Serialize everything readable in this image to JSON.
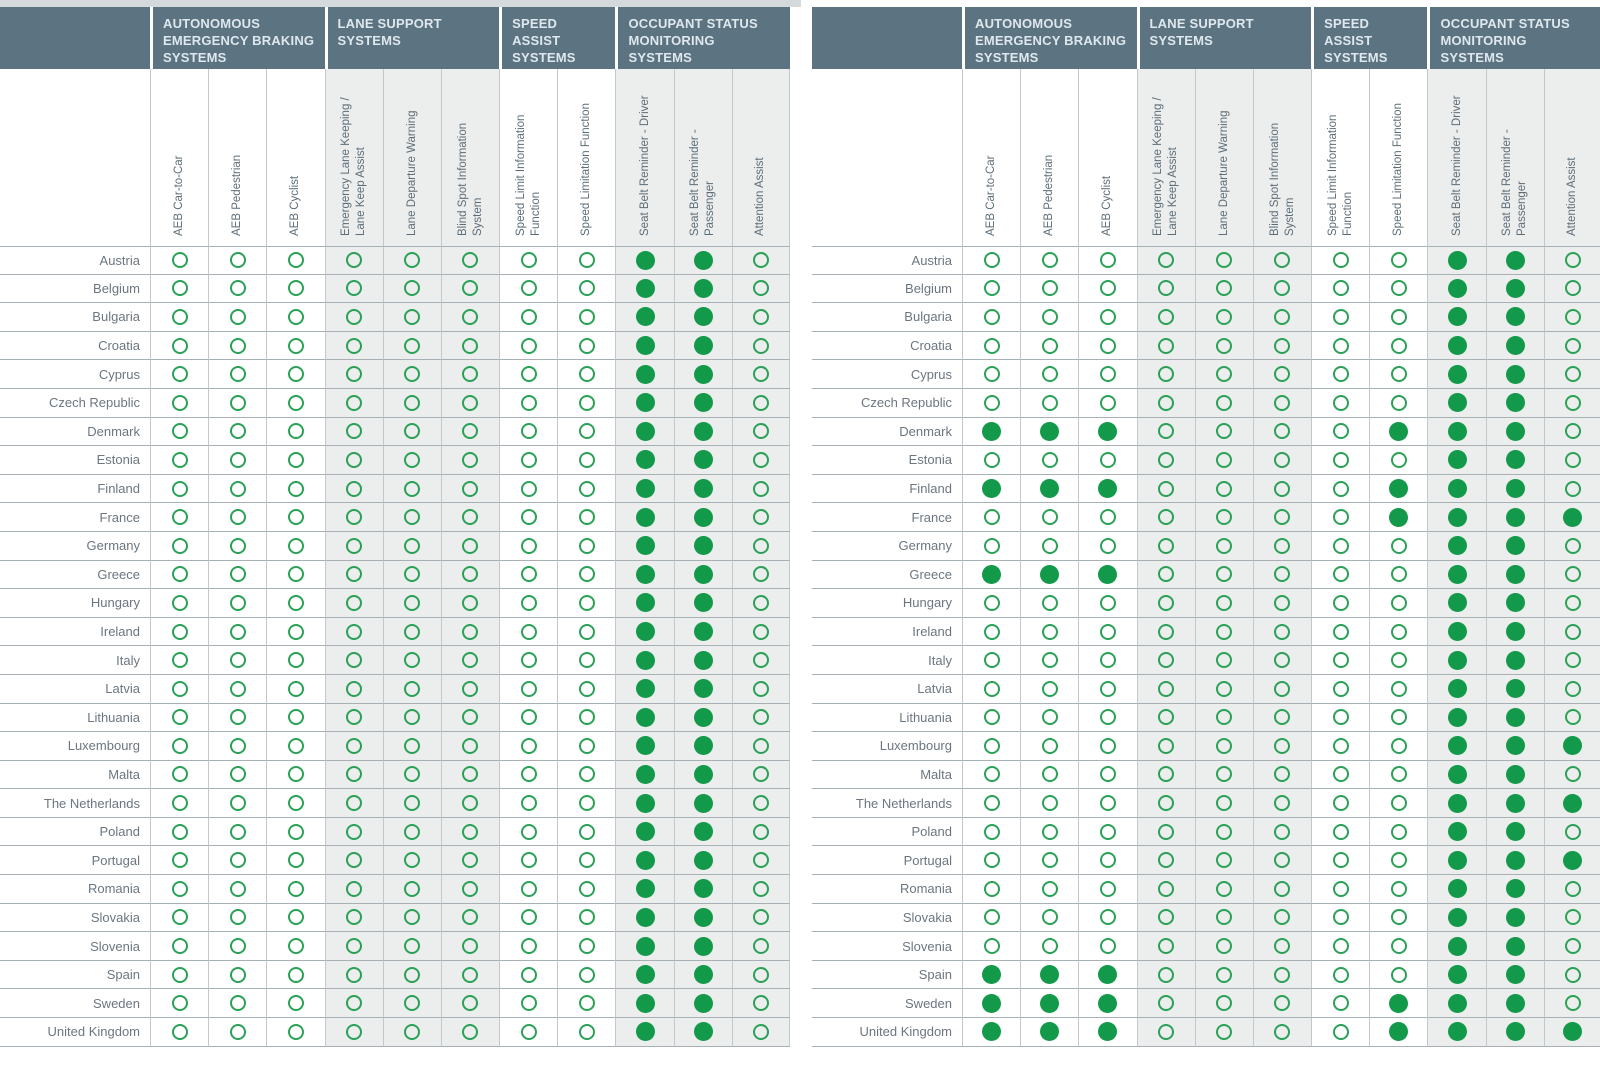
{
  "colors": {
    "header_bg": "#5c7381",
    "header_text": "#dfe8ec",
    "dot_fill": "#12994a",
    "dot_ring": "#2aa156",
    "shade_bg": "#eceded",
    "row_line": "#a6b0b5",
    "col_line": "#c2c9cc",
    "country_text": "#6b7680",
    "label_text": "#5d6d77",
    "edge_strip": "#d4d9db"
  },
  "cell_encoding": "1 = filled green circle, 0 = empty green circle outline",
  "chart_data": [
    {
      "type": "table",
      "column_groups": [
        {
          "label": "AUTONOMOUS EMERGENCY BRAKING SYSTEMS",
          "span": 3
        },
        {
          "label": "LANE SUPPORT SYSTEMS",
          "span": 3
        },
        {
          "label": "SPEED ASSIST SYSTEMS",
          "span": 2
        },
        {
          "label": "OCCUPANT STATUS MONITORING SYSTEMS",
          "span": 3
        }
      ],
      "columns": [
        "AEB Car-to-Car",
        "AEB Pedestrian",
        "AEB Cyclist",
        "Emergency Lane Keeping / Lane Keep Assist",
        "Lane Departure Warning",
        "Blind Spot Information System",
        "Speed Limit Information Function",
        "Speed Limitation Function",
        "Seat Belt Reminder - Driver",
        "Seat Belt Reminder - Passenger",
        "Attention Assist"
      ],
      "rows": [
        "Austria",
        "Belgium",
        "Bulgaria",
        "Croatia",
        "Cyprus",
        "Czech Republic",
        "Denmark",
        "Estonia",
        "Finland",
        "France",
        "Germany",
        "Greece",
        "Hungary",
        "Ireland",
        "Italy",
        "Latvia",
        "Lithuania",
        "Luxembourg",
        "Malta",
        "The Netherlands",
        "Poland",
        "Portugal",
        "Romania",
        "Slovakia",
        "Slovenia",
        "Spain",
        "Sweden",
        "United Kingdom"
      ],
      "values": [
        [
          0,
          0,
          0,
          0,
          0,
          0,
          0,
          0,
          1,
          1,
          0
        ],
        [
          0,
          0,
          0,
          0,
          0,
          0,
          0,
          0,
          1,
          1,
          0
        ],
        [
          0,
          0,
          0,
          0,
          0,
          0,
          0,
          0,
          1,
          1,
          0
        ],
        [
          0,
          0,
          0,
          0,
          0,
          0,
          0,
          0,
          1,
          1,
          0
        ],
        [
          0,
          0,
          0,
          0,
          0,
          0,
          0,
          0,
          1,
          1,
          0
        ],
        [
          0,
          0,
          0,
          0,
          0,
          0,
          0,
          0,
          1,
          1,
          0
        ],
        [
          0,
          0,
          0,
          0,
          0,
          0,
          0,
          0,
          1,
          1,
          0
        ],
        [
          0,
          0,
          0,
          0,
          0,
          0,
          0,
          0,
          1,
          1,
          0
        ],
        [
          0,
          0,
          0,
          0,
          0,
          0,
          0,
          0,
          1,
          1,
          0
        ],
        [
          0,
          0,
          0,
          0,
          0,
          0,
          0,
          0,
          1,
          1,
          0
        ],
        [
          0,
          0,
          0,
          0,
          0,
          0,
          0,
          0,
          1,
          1,
          0
        ],
        [
          0,
          0,
          0,
          0,
          0,
          0,
          0,
          0,
          1,
          1,
          0
        ],
        [
          0,
          0,
          0,
          0,
          0,
          0,
          0,
          0,
          1,
          1,
          0
        ],
        [
          0,
          0,
          0,
          0,
          0,
          0,
          0,
          0,
          1,
          1,
          0
        ],
        [
          0,
          0,
          0,
          0,
          0,
          0,
          0,
          0,
          1,
          1,
          0
        ],
        [
          0,
          0,
          0,
          0,
          0,
          0,
          0,
          0,
          1,
          1,
          0
        ],
        [
          0,
          0,
          0,
          0,
          0,
          0,
          0,
          0,
          1,
          1,
          0
        ],
        [
          0,
          0,
          0,
          0,
          0,
          0,
          0,
          0,
          1,
          1,
          0
        ],
        [
          0,
          0,
          0,
          0,
          0,
          0,
          0,
          0,
          1,
          1,
          0
        ],
        [
          0,
          0,
          0,
          0,
          0,
          0,
          0,
          0,
          1,
          1,
          0
        ],
        [
          0,
          0,
          0,
          0,
          0,
          0,
          0,
          0,
          1,
          1,
          0
        ],
        [
          0,
          0,
          0,
          0,
          0,
          0,
          0,
          0,
          1,
          1,
          0
        ],
        [
          0,
          0,
          0,
          0,
          0,
          0,
          0,
          0,
          1,
          1,
          0
        ],
        [
          0,
          0,
          0,
          0,
          0,
          0,
          0,
          0,
          1,
          1,
          0
        ],
        [
          0,
          0,
          0,
          0,
          0,
          0,
          0,
          0,
          1,
          1,
          0
        ],
        [
          0,
          0,
          0,
          0,
          0,
          0,
          0,
          0,
          1,
          1,
          0
        ],
        [
          0,
          0,
          0,
          0,
          0,
          0,
          0,
          0,
          1,
          1,
          0
        ],
        [
          0,
          0,
          0,
          0,
          0,
          0,
          0,
          0,
          1,
          1,
          0
        ]
      ]
    },
    {
      "type": "table",
      "column_groups": [
        {
          "label": "AUTONOMOUS EMERGENCY BRAKING SYSTEMS",
          "span": 3
        },
        {
          "label": "LANE SUPPORT SYSTEMS",
          "span": 3
        },
        {
          "label": "SPEED ASSIST SYSTEMS",
          "span": 2
        },
        {
          "label": "OCCUPANT STATUS MONITORING SYSTEMS",
          "span": 3
        }
      ],
      "columns": [
        "AEB Car-to-Car",
        "AEB Pedestrian",
        "AEB Cyclist",
        "Emergency Lane Keeping / Lane Keep Assist",
        "Lane Departure Warning",
        "Blind Spot Information System",
        "Speed Limit Information Function",
        "Speed Limitation Function",
        "Seat Belt Reminder - Driver",
        "Seat Belt Reminder - Passenger",
        "Attention Assist"
      ],
      "rows": [
        "Austria",
        "Belgium",
        "Bulgaria",
        "Croatia",
        "Cyprus",
        "Czech Republic",
        "Denmark",
        "Estonia",
        "Finland",
        "France",
        "Germany",
        "Greece",
        "Hungary",
        "Ireland",
        "Italy",
        "Latvia",
        "Lithuania",
        "Luxembourg",
        "Malta",
        "The Netherlands",
        "Poland",
        "Portugal",
        "Romania",
        "Slovakia",
        "Slovenia",
        "Spain",
        "Sweden",
        "United Kingdom"
      ],
      "values": [
        [
          0,
          0,
          0,
          0,
          0,
          0,
          0,
          0,
          1,
          1,
          0
        ],
        [
          0,
          0,
          0,
          0,
          0,
          0,
          0,
          0,
          1,
          1,
          0
        ],
        [
          0,
          0,
          0,
          0,
          0,
          0,
          0,
          0,
          1,
          1,
          0
        ],
        [
          0,
          0,
          0,
          0,
          0,
          0,
          0,
          0,
          1,
          1,
          0
        ],
        [
          0,
          0,
          0,
          0,
          0,
          0,
          0,
          0,
          1,
          1,
          0
        ],
        [
          0,
          0,
          0,
          0,
          0,
          0,
          0,
          0,
          1,
          1,
          0
        ],
        [
          1,
          1,
          1,
          0,
          0,
          0,
          0,
          1,
          1,
          1,
          0
        ],
        [
          0,
          0,
          0,
          0,
          0,
          0,
          0,
          0,
          1,
          1,
          0
        ],
        [
          1,
          1,
          1,
          0,
          0,
          0,
          0,
          1,
          1,
          1,
          0
        ],
        [
          0,
          0,
          0,
          0,
          0,
          0,
          0,
          1,
          1,
          1,
          1
        ],
        [
          0,
          0,
          0,
          0,
          0,
          0,
          0,
          0,
          1,
          1,
          0
        ],
        [
          1,
          1,
          1,
          0,
          0,
          0,
          0,
          0,
          1,
          1,
          0
        ],
        [
          0,
          0,
          0,
          0,
          0,
          0,
          0,
          0,
          1,
          1,
          0
        ],
        [
          0,
          0,
          0,
          0,
          0,
          0,
          0,
          0,
          1,
          1,
          0
        ],
        [
          0,
          0,
          0,
          0,
          0,
          0,
          0,
          0,
          1,
          1,
          0
        ],
        [
          0,
          0,
          0,
          0,
          0,
          0,
          0,
          0,
          1,
          1,
          0
        ],
        [
          0,
          0,
          0,
          0,
          0,
          0,
          0,
          0,
          1,
          1,
          0
        ],
        [
          0,
          0,
          0,
          0,
          0,
          0,
          0,
          0,
          1,
          1,
          1
        ],
        [
          0,
          0,
          0,
          0,
          0,
          0,
          0,
          0,
          1,
          1,
          0
        ],
        [
          0,
          0,
          0,
          0,
          0,
          0,
          0,
          0,
          1,
          1,
          1
        ],
        [
          0,
          0,
          0,
          0,
          0,
          0,
          0,
          0,
          1,
          1,
          0
        ],
        [
          0,
          0,
          0,
          0,
          0,
          0,
          0,
          0,
          1,
          1,
          1
        ],
        [
          0,
          0,
          0,
          0,
          0,
          0,
          0,
          0,
          1,
          1,
          0
        ],
        [
          0,
          0,
          0,
          0,
          0,
          0,
          0,
          0,
          1,
          1,
          0
        ],
        [
          0,
          0,
          0,
          0,
          0,
          0,
          0,
          0,
          1,
          1,
          0
        ],
        [
          1,
          1,
          1,
          0,
          0,
          0,
          0,
          0,
          1,
          1,
          0
        ],
        [
          1,
          1,
          1,
          0,
          0,
          0,
          0,
          1,
          1,
          1,
          0
        ],
        [
          1,
          1,
          1,
          0,
          0,
          0,
          0,
          1,
          1,
          1,
          1
        ]
      ]
    }
  ]
}
